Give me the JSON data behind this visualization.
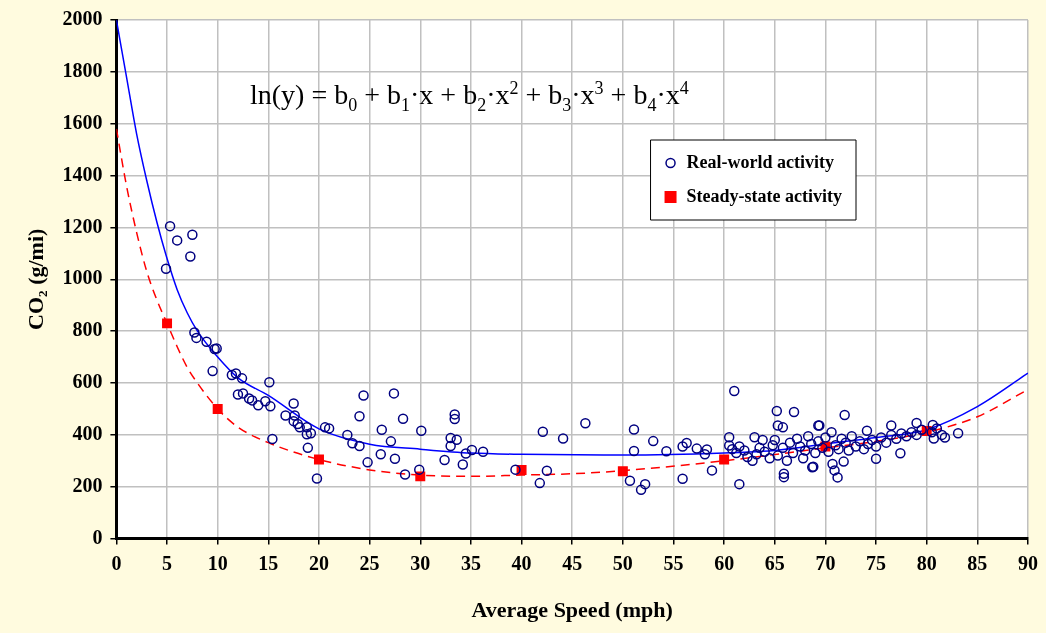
{
  "chart_data": {
    "type": "scatter",
    "xlabel": "Average Speed (mph)",
    "ylabel": "CO₂ (g/mi)",
    "xlim": [
      0,
      90
    ],
    "xticks": [
      0,
      5,
      10,
      15,
      20,
      25,
      30,
      35,
      40,
      45,
      50,
      55,
      60,
      65,
      70,
      75,
      80,
      85,
      90
    ],
    "ylim": [
      0,
      2000
    ],
    "yticks": [
      0,
      200,
      400,
      600,
      800,
      1000,
      1200,
      1400,
      1600,
      1800,
      2000
    ],
    "grid": true,
    "legend": "top right",
    "annotations": [
      "ln(y) = b$_{0}$ + b$_{1}$·x + b$_{2}$·x$^{2}$ + b$_{3}$·x$^{3}$ + b$_{4}$·x$^{4}$"
    ],
    "series": [
      {
        "type": "line",
        "color": "#0000ff",
        "line_style": "solid",
        "marker": "none",
        "x": [
          0,
          1,
          2,
          3,
          4,
          5,
          6,
          7,
          8,
          10,
          12,
          15,
          20,
          25,
          30,
          35,
          40,
          50,
          60,
          65,
          70,
          75,
          80,
          85,
          90
        ],
        "values": [
          2000,
          1780,
          1560,
          1380,
          1220,
          1080,
          960,
          870,
          800,
          700,
          620,
          552,
          423,
          364,
          345,
          330,
          325,
          322,
          330,
          340,
          365,
          390,
          420,
          509,
          638
        ]
      },
      {
        "type": "line",
        "color": "#ff0000",
        "line_style": "dashed",
        "marker": "none",
        "x": [
          0,
          1,
          2,
          3,
          4,
          5,
          6,
          7,
          8,
          10,
          12,
          15,
          20,
          25,
          30,
          35,
          40,
          45,
          50,
          60,
          70,
          75,
          80,
          85,
          90
        ],
        "values": [
          1580,
          1360,
          1180,
          1030,
          920,
          830,
          740,
          660,
          600,
          500,
          430,
          370,
          305,
          265,
          245,
          240,
          245,
          250,
          262,
          300,
          350,
          375,
          410,
          470,
          575
        ]
      },
      {
        "name": "Real-world activity",
        "type": "scatter",
        "color": "#000080",
        "marker": "circle",
        "x": [
          5.3,
          6.0,
          7.5,
          7.3,
          4.9,
          7.7,
          7.9,
          8.9,
          9.7,
          9.9,
          9.5,
          11.4,
          11.8,
          12.4,
          15.1,
          12.0,
          12.5,
          13.1,
          13.4,
          14.0,
          14.7,
          15.2,
          17.5,
          16.7,
          17.6,
          17.5,
          17.9,
          18.1,
          18.8,
          18.8,
          19.2,
          18.9,
          15.4,
          20.6,
          21.0,
          22.8,
          23.3,
          24.0,
          24.4,
          24.0,
          24.8,
          19.8,
          26.2,
          26.1,
          27.4,
          28.3,
          27.1,
          27.5,
          28.5,
          30.1,
          29.9,
          33.4,
          33.4,
          33.0,
          33.6,
          33.0,
          32.4,
          34.2,
          34.5,
          35.1,
          36.2,
          39.4,
          42.1,
          44.1,
          46.3,
          42.5,
          41.8,
          51.1,
          51.1,
          50.7,
          51.8,
          53.0,
          54.3,
          52.2,
          55.9,
          56.3,
          55.9,
          57.3,
          58.3,
          58.1,
          58.8,
          61.0,
          60.5,
          60.5,
          61.5,
          63.0,
          63.8,
          65.2,
          66.9,
          65.3,
          65.8,
          65.9,
          65.9,
          68.7,
          69.4,
          71.9,
          69.3,
          70.7,
          70.9,
          71.2,
          71.8,
          68.8,
          75.0,
          77.4,
          74.1,
          76.5,
          79.0,
          83.1,
          81.8,
          80.7,
          80.6,
          60.8,
          61.2,
          61.5,
          62.0,
          62.3,
          62.8,
          63.2,
          63.5,
          64.0,
          64.5,
          64.8,
          65.0,
          65.3,
          65.8,
          66.2,
          66.5,
          66.8,
          67.2,
          67.5,
          67.8,
          68.0,
          68.3,
          68.6,
          69.0,
          69.3,
          69.7,
          70.0,
          70.3,
          70.6,
          71.0,
          71.3,
          71.6,
          72.0,
          72.3,
          72.6,
          73.0,
          73.4,
          73.8,
          74.2,
          74.6,
          75.0,
          75.5,
          76.0,
          76.5,
          77.0,
          77.5,
          78.0,
          78.5,
          79.0,
          79.5,
          80.5,
          81.0,
          81.5
        ],
        "values": [
          1205,
          1150,
          1172,
          1088,
          1041,
          795,
          774,
          759,
          731,
          733,
          646,
          631,
          637,
          618,
          603,
          556,
          560,
          540,
          533,
          514,
          530,
          510,
          521,
          475,
          475,
          453,
          442,
          429,
          429,
          402,
          406,
          350,
          384,
          429,
          425,
          400,
          368,
          357,
          552,
          472,
          294,
          232,
          420,
          325,
          560,
          462,
          375,
          308,
          247,
          416,
          266,
          479,
          461,
          388,
          381,
          357,
          303,
          286,
          328,
          342,
          335,
          266,
          412,
          386,
          445,
          262,
          214,
          421,
          338,
          223,
          188,
          376,
          337,
          210,
          355,
          369,
          231,
          347,
          344,
          325,
          263,
          569,
          391,
          359,
          210,
          391,
          380,
          492,
          488,
          436,
          429,
          250,
          237,
          275,
          436,
          477,
          436,
          288,
          263,
          236,
          297,
          277,
          308,
          329,
          416,
          436,
          446,
          406,
          390,
          386,
          438,
          345,
          330,
          355,
          340,
          315,
          300,
          325,
          350,
          335,
          310,
          360,
          380,
          320,
          350,
          300,
          370,
          330,
          385,
          355,
          310,
          340,
          395,
          365,
          330,
          375,
          350,
          390,
          335,
          410,
          360,
          345,
          385,
          370,
          340,
          395,
          355,
          375,
          345,
          365,
          380,
          355,
          390,
          370,
          400,
          385,
          405,
          395,
          410,
          400,
          420,
          410,
          425,
          400
        ]
      },
      {
        "name": "Steady-state activity",
        "type": "scatter",
        "color": "#ff0000",
        "marker": "square",
        "x": [
          5,
          10,
          20,
          30,
          40,
          50,
          60,
          70,
          80
        ],
        "values": [
          830,
          500,
          305,
          240,
          265,
          260,
          305,
          355,
          415
        ]
      }
    ]
  }
}
